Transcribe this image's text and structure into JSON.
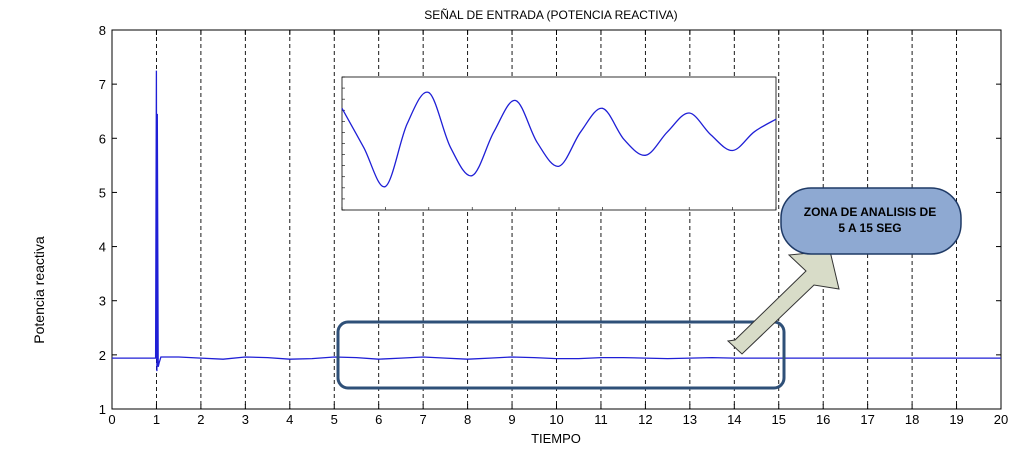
{
  "chart_data": {
    "type": "line",
    "title": "SEÑAL DE ENTRADA (POTENCIA REACTIVA)",
    "xlabel": "TIEMPO",
    "ylabel": "Potencia reactiva",
    "xlim": [
      0,
      20
    ],
    "ylim": [
      1,
      8
    ],
    "xticks": [
      "0",
      "1",
      "2",
      "3",
      "4",
      "5",
      "6",
      "7",
      "8",
      "9",
      "10",
      "11",
      "12",
      "13",
      "14",
      "15",
      "16",
      "17",
      "18",
      "19",
      "20"
    ],
    "yticks": [
      "1",
      "2",
      "3",
      "4",
      "5",
      "6",
      "7",
      "8"
    ],
    "grid": "vertical dashed",
    "series": [
      {
        "color": "#1f1fd6",
        "x": [
          0,
          0.98,
          1.0,
          1.01,
          1.02,
          1.04,
          1.06,
          1.1,
          1.2,
          1.5,
          2.0,
          2.5,
          3.0,
          3.5,
          4.0,
          4.5,
          5.0,
          5.5,
          6.0,
          6.5,
          7.0,
          7.5,
          8.0,
          8.5,
          9.0,
          9.5,
          10.0,
          10.5,
          11.0,
          11.5,
          12.0,
          12.5,
          13.0,
          13.5,
          14.0,
          14.5,
          15.0,
          16.0,
          17.0,
          18.0,
          19.0,
          20.0
        ],
        "y": [
          1.94,
          1.94,
          7.25,
          1.7,
          6.45,
          1.78,
          1.85,
          1.96,
          1.96,
          1.96,
          1.94,
          1.92,
          1.96,
          1.95,
          1.92,
          1.93,
          1.96,
          1.95,
          1.92,
          1.94,
          1.96,
          1.94,
          1.92,
          1.94,
          1.96,
          1.95,
          1.93,
          1.93,
          1.95,
          1.95,
          1.94,
          1.93,
          1.94,
          1.95,
          1.94,
          1.94,
          1.94,
          1.94,
          1.94,
          1.94,
          1.94,
          1.94
        ]
      }
    ],
    "inset": {
      "type": "line",
      "xlim": [
        5,
        15
      ],
      "description_series": "damped oscillation of the reactive power between 5 and 15 s",
      "x": [
        5.0,
        5.5,
        6.0,
        6.5,
        7.0,
        7.5,
        8.0,
        8.5,
        9.0,
        9.5,
        10.0,
        10.5,
        11.0,
        11.5,
        12.0,
        12.5,
        13.0,
        13.5,
        14.0,
        14.5,
        15.0
      ],
      "y": [
        1.955,
        1.93,
        1.905,
        1.945,
        1.965,
        1.93,
        1.912,
        1.94,
        1.96,
        1.933,
        1.918,
        1.94,
        1.955,
        1.935,
        1.925,
        1.94,
        1.952,
        1.938,
        1.928,
        1.94,
        1.948
      ],
      "ylim": [
        1.89,
        1.975
      ]
    }
  },
  "annotation": {
    "callout_line1": "ZONA DE ANALISIS DE",
    "callout_line2": "5 A 15 SEG",
    "callout_fill": "#8ea9d2",
    "callout_stroke": "#1f3a66",
    "highlight_stroke": "#2f5078",
    "arrow_fill": "#d8dcc8",
    "highlight_range": [
      5,
      15
    ]
  }
}
